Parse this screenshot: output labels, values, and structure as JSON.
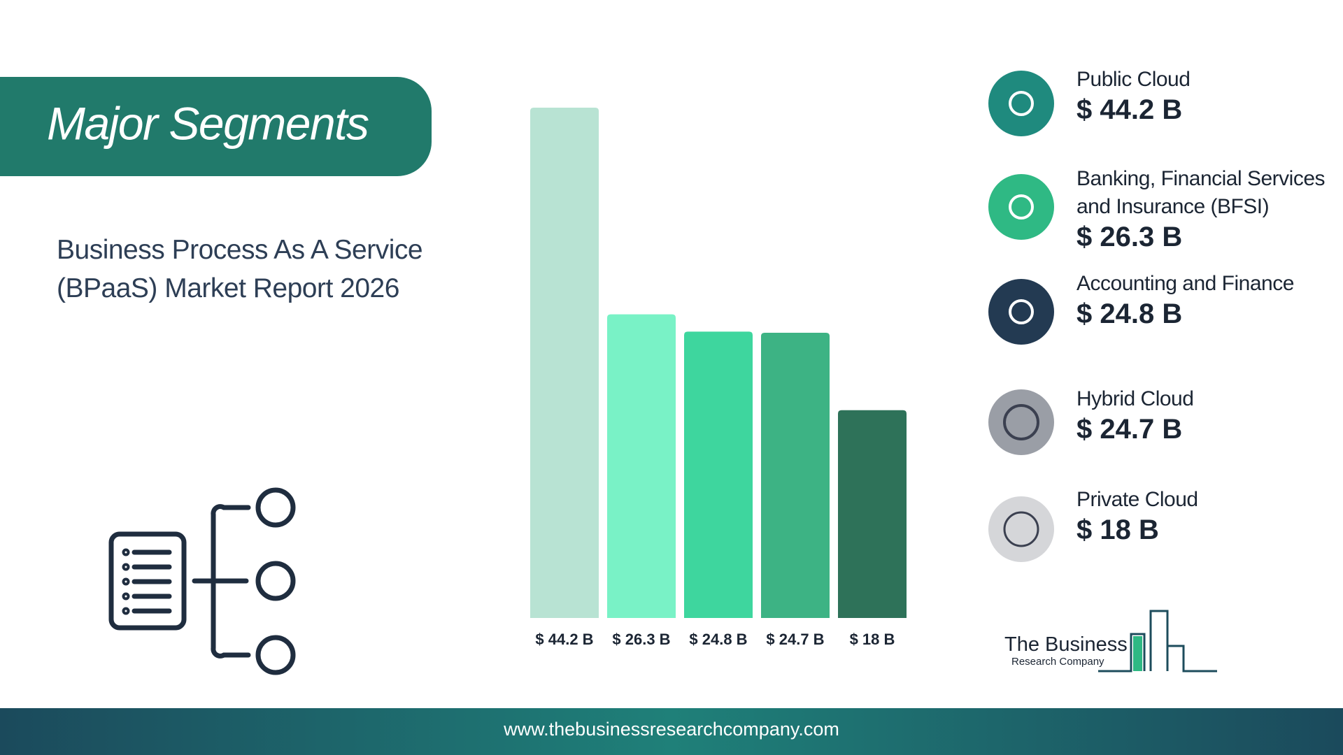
{
  "chart_data": {
    "type": "bar",
    "title": "Major Segments",
    "subtitle": "Business Process As A Service (BPaaS) Market Report 2026",
    "categories": [
      "Public Cloud",
      "Banking, Financial Services and Insurance (BFSI)",
      "Accounting and Finance",
      "Hybrid Cloud",
      "Private Cloud"
    ],
    "values": [
      44.2,
      26.3,
      24.8,
      24.7,
      18
    ],
    "value_labels": [
      "$ 44.2 B",
      "$ 26.3 B",
      "$ 24.8 B",
      "$ 24.7 B",
      "$ 18 B"
    ],
    "colors": [
      "#b8e3d3",
      "#79f2c6",
      "#3ed69e",
      "#3db384",
      "#2e7259"
    ]
  },
  "logo": {
    "line1": "The Business",
    "line2": "Research Company"
  },
  "footer": {
    "url": "www.thebusinessresearchcompany.com"
  }
}
